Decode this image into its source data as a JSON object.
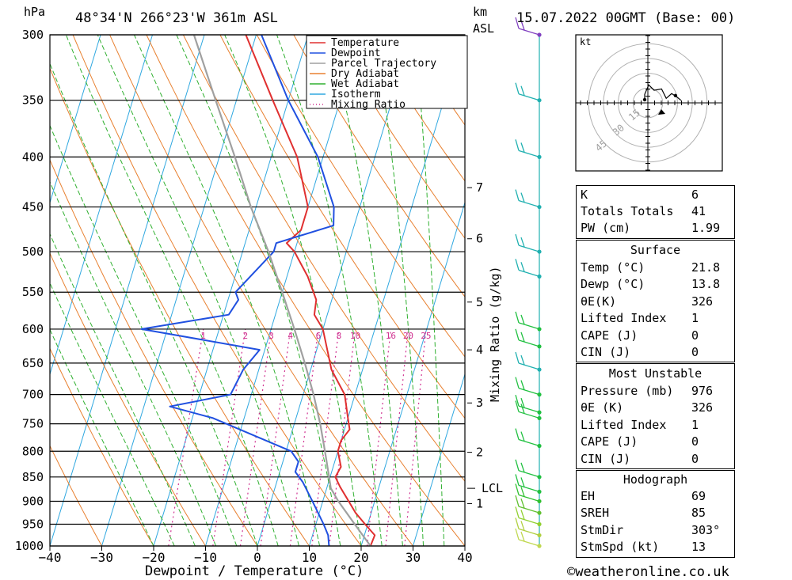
{
  "header": {
    "pressure_unit": "hPa",
    "location": "48°34'N  266°23'W  361m  ASL",
    "height_unit_line1": "km",
    "height_unit_line2": "ASL",
    "datetime": "15.07.2022  00GMT  (Base: 00)"
  },
  "chart_data": {
    "type": "skew-t log-p",
    "xlabel": "Dewpoint / Temperature (°C)",
    "ylabel_left": "hPa",
    "ylabel_right": "Mixing Ratio (g/kg)",
    "xlim": [
      -40,
      40
    ],
    "ylim": [
      1000,
      300
    ],
    "x_ticks": [
      -40,
      -30,
      -20,
      -10,
      0,
      10,
      20,
      30,
      40
    ],
    "x_tick_labels": [
      "−40",
      "−30",
      "−20",
      "−10",
      "0",
      "10",
      "20",
      "30",
      "40"
    ],
    "pressure_levels": [
      300,
      350,
      400,
      450,
      500,
      550,
      600,
      650,
      700,
      750,
      800,
      850,
      900,
      950,
      1000
    ],
    "km_ticks": [
      {
        "label": "7",
        "p": 430
      },
      {
        "label": "6",
        "p": 485
      },
      {
        "label": "5",
        "p": 563
      },
      {
        "label": "4",
        "p": 630
      },
      {
        "label": "3",
        "p": 714
      },
      {
        "label": "2",
        "p": 802
      },
      {
        "label": "1",
        "p": 905
      }
    ],
    "lcl": {
      "label": "LCL",
      "p": 873
    },
    "mixing_ratio_labels": [
      "1",
      "2",
      "3",
      "4",
      "6",
      "8",
      "10",
      "16",
      "20",
      "25"
    ],
    "mixing_ratio_label_p": 598,
    "mixing_ratio_values": [
      1,
      2,
      3,
      4,
      6,
      8,
      10,
      16,
      20,
      25
    ],
    "legend": [
      {
        "name": "Temperature",
        "color": "#e03030",
        "dotted": false
      },
      {
        "name": "Dewpoint",
        "color": "#2050e0",
        "dotted": false
      },
      {
        "name": "Parcel Trajectory",
        "color": "#a0a0a0",
        "dotted": false
      },
      {
        "name": "Dry Adiabat",
        "color": "#e88030",
        "dotted": false
      },
      {
        "name": "Wet Adiabat",
        "color": "#30b030",
        "dotted": false
      },
      {
        "name": "Isotherm",
        "color": "#30a8e0",
        "dotted": false
      },
      {
        "name": "Mixing Ratio",
        "color": "#d03090",
        "dotted": true
      }
    ],
    "series": [
      {
        "name": "Temperature",
        "points": [
          [
            1000,
            21.8
          ],
          [
            975,
            22
          ],
          [
            950,
            19.5
          ],
          [
            925,
            17
          ],
          [
            900,
            15
          ],
          [
            870,
            12.5
          ],
          [
            850,
            11
          ],
          [
            830,
            11.5
          ],
          [
            800,
            10
          ],
          [
            780,
            10
          ],
          [
            760,
            11
          ],
          [
            740,
            10
          ],
          [
            700,
            8
          ],
          [
            660,
            4
          ],
          [
            600,
            0
          ],
          [
            580,
            -2.5
          ],
          [
            560,
            -3
          ],
          [
            530,
            -6
          ],
          [
            500,
            -10
          ],
          [
            490,
            -12
          ],
          [
            475,
            -10
          ],
          [
            450,
            -10
          ],
          [
            400,
            -15
          ],
          [
            350,
            -23
          ],
          [
            300,
            -32
          ]
        ]
      },
      {
        "name": "Dewpoint",
        "points": [
          [
            1000,
            13.8
          ],
          [
            975,
            13
          ],
          [
            950,
            11.5
          ],
          [
            900,
            8
          ],
          [
            860,
            5
          ],
          [
            840,
            3
          ],
          [
            820,
            3
          ],
          [
            800,
            1
          ],
          [
            740,
            -16
          ],
          [
            720,
            -25
          ],
          [
            700,
            -14
          ],
          [
            660,
            -13
          ],
          [
            630,
            -11
          ],
          [
            600,
            -35
          ],
          [
            580,
            -19
          ],
          [
            560,
            -18
          ],
          [
            550,
            -19
          ],
          [
            500,
            -14
          ],
          [
            490,
            -14
          ],
          [
            470,
            -4
          ],
          [
            450,
            -5
          ],
          [
            400,
            -11
          ],
          [
            350,
            -20
          ],
          [
            300,
            -29
          ]
        ]
      },
      {
        "name": "Parcel Trajectory",
        "points": [
          [
            1000,
            21.8
          ],
          [
            950,
            17.5
          ],
          [
            900,
            13
          ],
          [
            873,
            10.8
          ],
          [
            850,
            9.8
          ],
          [
            800,
            7.5
          ],
          [
            750,
            5
          ],
          [
            700,
            2
          ],
          [
            650,
            -1.5
          ],
          [
            600,
            -5.5
          ],
          [
            550,
            -10
          ],
          [
            500,
            -15
          ],
          [
            450,
            -21
          ],
          [
            400,
            -27
          ],
          [
            350,
            -34
          ],
          [
            300,
            -42
          ]
        ]
      }
    ],
    "wind_profile": [
      {
        "p": 300,
        "color": "#8040c0"
      },
      {
        "p": 350,
        "color": "#20b0b0"
      },
      {
        "p": 400,
        "color": "#20b0b0"
      },
      {
        "p": 450,
        "color": "#20b0b0"
      },
      {
        "p": 500,
        "color": "#20b0b0"
      },
      {
        "p": 530,
        "color": "#20b0b0"
      },
      {
        "p": 600,
        "color": "#20c040"
      },
      {
        "p": 625,
        "color": "#20c040"
      },
      {
        "p": 660,
        "color": "#20b0b0"
      },
      {
        "p": 700,
        "color": "#20c040"
      },
      {
        "p": 730,
        "color": "#20c040"
      },
      {
        "p": 740,
        "color": "#20c040"
      },
      {
        "p": 790,
        "color": "#20c040"
      },
      {
        "p": 850,
        "color": "#20c040"
      },
      {
        "p": 880,
        "color": "#20c040"
      },
      {
        "p": 900,
        "color": "#30c030"
      },
      {
        "p": 925,
        "color": "#60c030"
      },
      {
        "p": 950,
        "color": "#90d030"
      },
      {
        "p": 975,
        "color": "#b0d040"
      },
      {
        "p": 1000,
        "color": "#c0d850"
      }
    ]
  },
  "hodograph": {
    "unit": "kt",
    "ring_labels": [
      "15",
      "30",
      "45"
    ],
    "trace_points": [
      [
        0,
        0
      ],
      [
        0,
        0.8
      ],
      [
        0.6,
        2.2
      ],
      [
        1.4,
        1.4
      ],
      [
        2.5,
        1.6
      ],
      [
        3.2,
        0.2
      ],
      [
        4.0,
        0.9
      ],
      [
        4.8,
        0.4
      ],
      [
        5.4,
        -0.1
      ]
    ]
  },
  "stats": {
    "indices": [
      {
        "label": "K",
        "value": "6"
      },
      {
        "label": "Totals Totals",
        "value": "41"
      },
      {
        "label": "PW (cm)",
        "value": "1.99"
      }
    ],
    "surface": {
      "title": "Surface",
      "rows": [
        {
          "label": "Temp (°C)",
          "value": "21.8"
        },
        {
          "label": "Dewp (°C)",
          "value": "13.8"
        },
        {
          "label": "θE(K)",
          "value": "326"
        },
        {
          "label": "Lifted Index",
          "value": "1"
        },
        {
          "label": "CAPE (J)",
          "value": "0"
        },
        {
          "label": "CIN (J)",
          "value": "0"
        }
      ]
    },
    "most_unstable": {
      "title": "Most Unstable",
      "rows": [
        {
          "label": "Pressure (mb)",
          "value": "976"
        },
        {
          "label": "θE (K)",
          "value": "326"
        },
        {
          "label": "Lifted Index",
          "value": "1"
        },
        {
          "label": "CAPE (J)",
          "value": "0"
        },
        {
          "label": "CIN (J)",
          "value": "0"
        }
      ]
    },
    "hodograph_box": {
      "title": "Hodograph",
      "rows": [
        {
          "label": "EH",
          "value": "69"
        },
        {
          "label": "SREH",
          "value": "85"
        },
        {
          "label": "StmDir",
          "value": "303°"
        },
        {
          "label": "StmSpd (kt)",
          "value": "13"
        }
      ]
    }
  },
  "footer": {
    "copyright": "©weatheronline.co.uk"
  }
}
